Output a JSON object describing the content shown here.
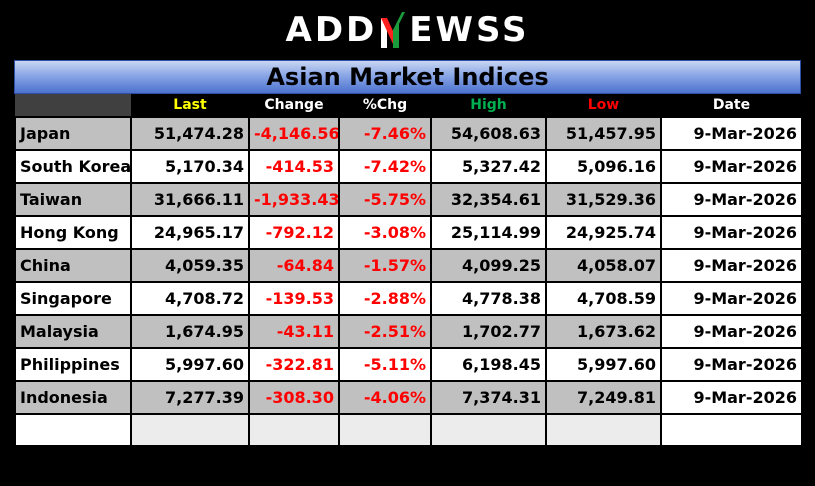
{
  "logo": {
    "pre": "ADD",
    "post": "EWSS"
  },
  "title": "Asian Market Indices",
  "columns": {
    "last": "Last",
    "change": "Change",
    "pct": "%Chg",
    "high": "High",
    "low": "Low",
    "date": "Date"
  },
  "rows": [
    {
      "name": "Japan",
      "last": "51,474.28",
      "change": "-4,146.56",
      "pct": "-7.46%",
      "high": "54,608.63",
      "low": "51,457.95",
      "date": "9-Mar-2026"
    },
    {
      "name": "South Korea",
      "last": "5,170.34",
      "change": "-414.53",
      "pct": "-7.42%",
      "high": "5,327.42",
      "low": "5,096.16",
      "date": "9-Mar-2026"
    },
    {
      "name": "Taiwan",
      "last": "31,666.11",
      "change": "-1,933.43",
      "pct": "-5.75%",
      "high": "32,354.61",
      "low": "31,529.36",
      "date": "9-Mar-2026"
    },
    {
      "name": "Hong Kong",
      "last": "24,965.17",
      "change": "-792.12",
      "pct": "-3.08%",
      "high": "25,114.99",
      "low": "24,925.74",
      "date": "9-Mar-2026"
    },
    {
      "name": "China",
      "last": "4,059.35",
      "change": "-64.84",
      "pct": "-1.57%",
      "high": "4,099.25",
      "low": "4,058.07",
      "date": "9-Mar-2026"
    },
    {
      "name": "Singapore",
      "last": "4,708.72",
      "change": "-139.53",
      "pct": "-2.88%",
      "high": "4,778.38",
      "low": "4,708.59",
      "date": "9-Mar-2026"
    },
    {
      "name": "Malaysia",
      "last": "1,674.95",
      "change": "-43.11",
      "pct": "-2.51%",
      "high": "1,702.77",
      "low": "1,673.62",
      "date": "9-Mar-2026"
    },
    {
      "name": "Philippines",
      "last": "5,997.60",
      "change": "-322.81",
      "pct": "-5.11%",
      "high": "6,198.45",
      "low": "5,997.60",
      "date": "9-Mar-2026"
    },
    {
      "name": "Indonesia",
      "last": "7,277.39",
      "change": "-308.30",
      "pct": "-4.06%",
      "high": "7,374.31",
      "low": "7,249.81",
      "date": "9-Mar-2026"
    }
  ],
  "colors": {
    "last_header": "#ffff00",
    "high_header": "#00b050",
    "low_header": "#ff0000",
    "negative": "#ff0000",
    "row_shade": "#c0c0c0",
    "title_bar": "#4c72cf",
    "logo_accent": "#1a9a3a"
  }
}
